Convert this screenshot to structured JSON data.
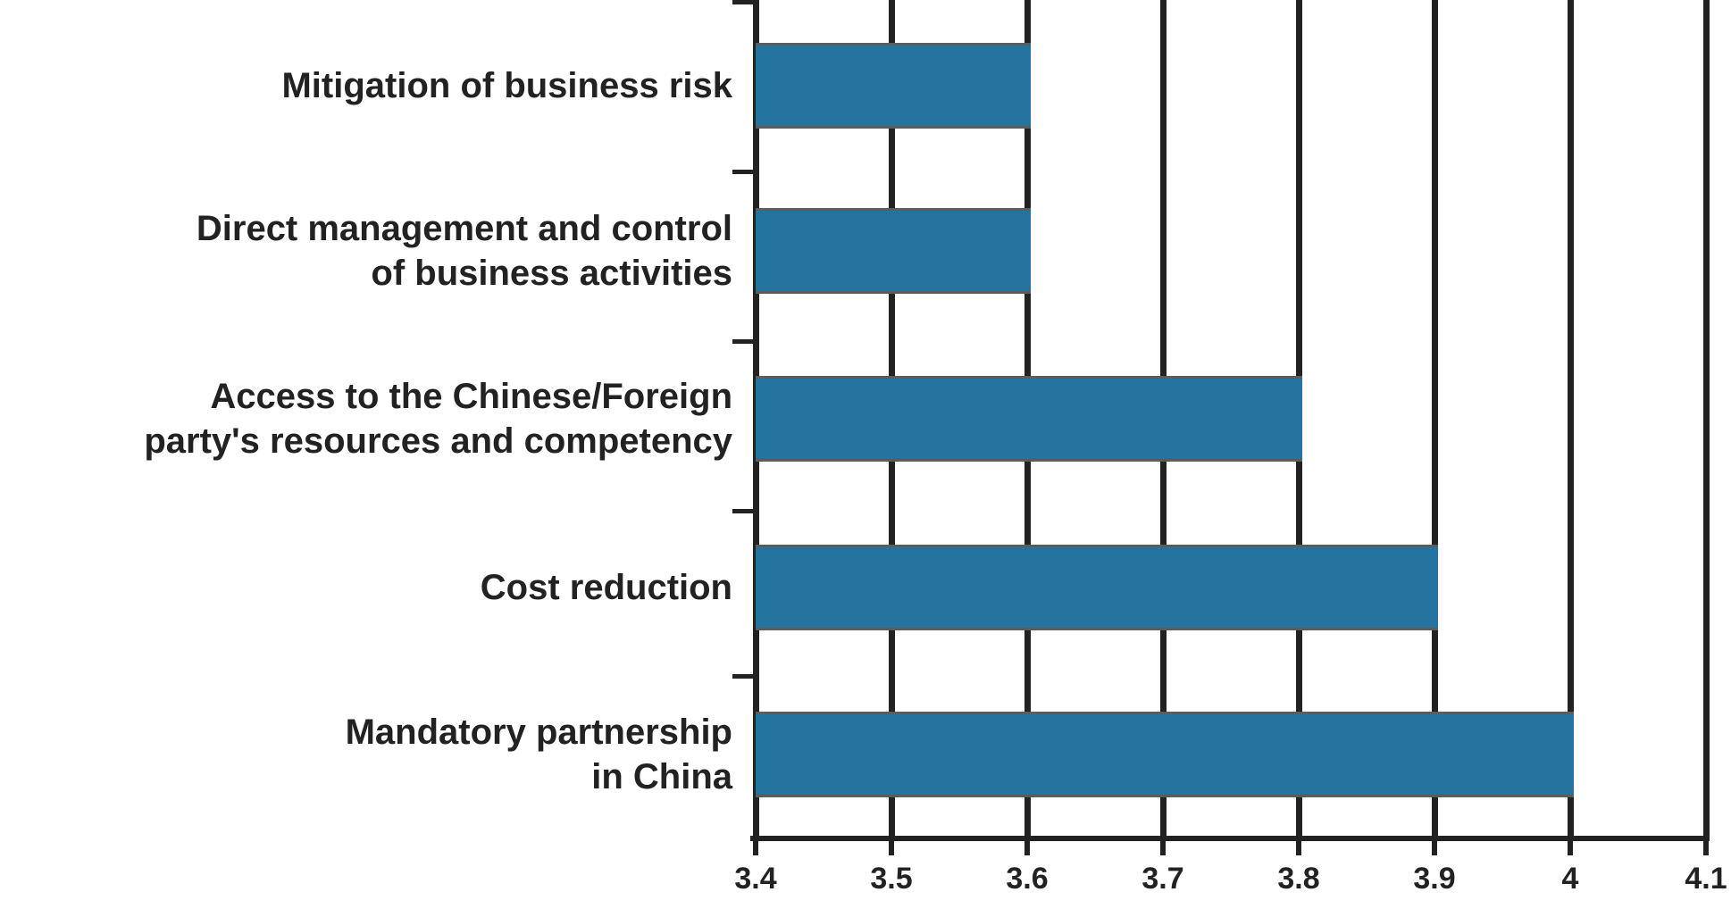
{
  "chart_data": {
    "type": "bar",
    "orientation": "horizontal",
    "title": "",
    "xlabel": "",
    "ylabel": "",
    "categories": [
      "Mitigation of business risk",
      "Direct management and control of business activities",
      "Access to the Chinese/Foreign party's resources and competency",
      "Cost reduction",
      "Mandatory partnership in China"
    ],
    "values": [
      3.6,
      3.6,
      3.8,
      3.9,
      4.0
    ],
    "xlim": [
      3.4,
      4.1
    ],
    "xticks": [
      "3.4",
      "3.5",
      "3.6",
      "3.7",
      "3.8",
      "3.9",
      "4",
      "4.1"
    ],
    "grid": true,
    "bar_color": "#24729e"
  },
  "labels": [
    "Mitigation of business risk",
    "Direct management and control\nof business activities",
    "Access to the Chinese/Foreign\nparty's resources and competency",
    "Cost reduction",
    "Mandatory partnership\nin China"
  ],
  "xticks": [
    "3.4",
    "3.5",
    "3.6",
    "3.7",
    "3.8",
    "3.9",
    "4",
    "4.1"
  ]
}
